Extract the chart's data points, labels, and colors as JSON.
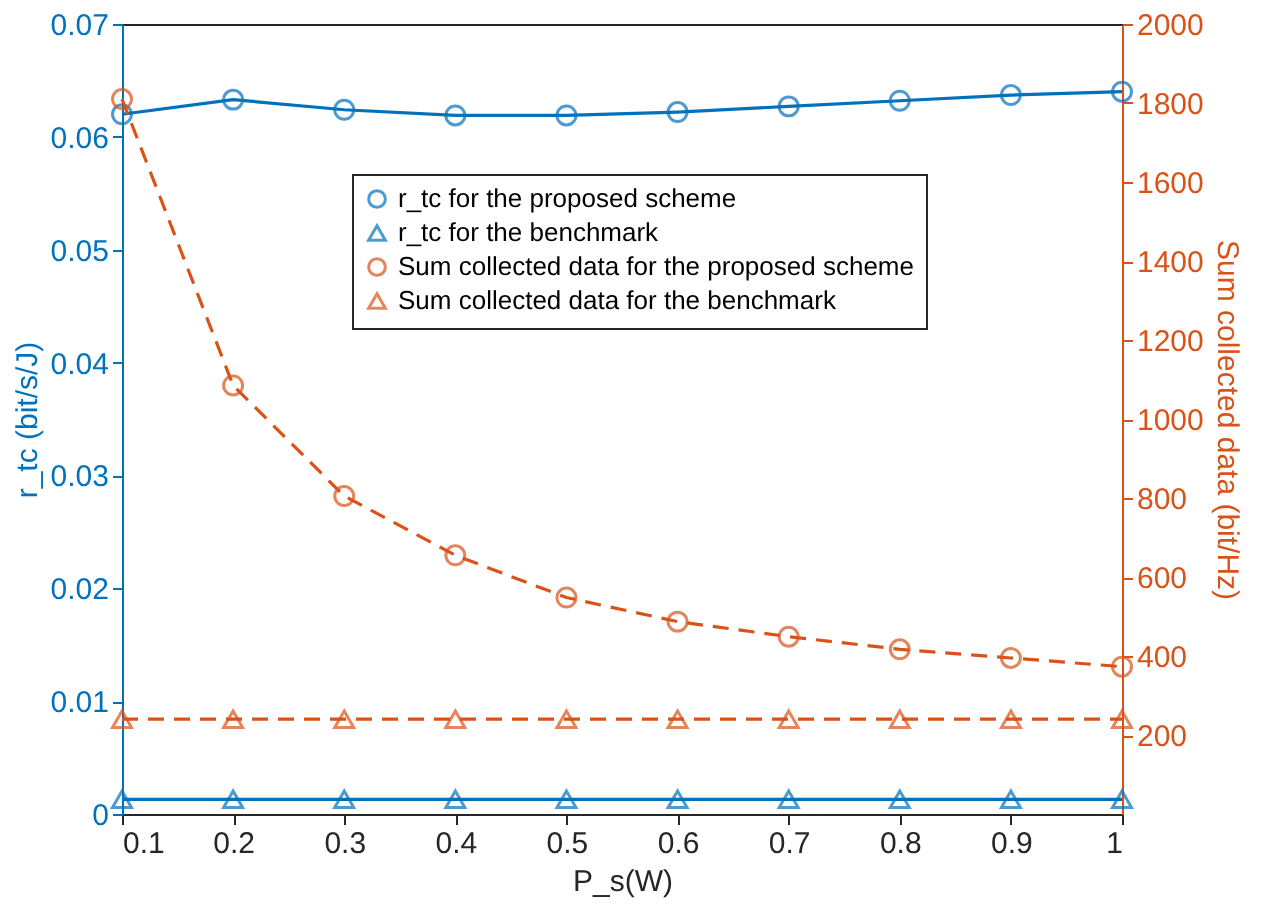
{
  "chart_data": {
    "type": "line",
    "xlabel": "P_s(W)",
    "ylabel": "r_tc (bit/s/J)",
    "y2label": "Sum collected data (bit/Hz)",
    "x": [
      0.1,
      0.2,
      0.3,
      0.4,
      0.5,
      0.6,
      0.7,
      0.8,
      0.9,
      1.0
    ],
    "series": [
      {
        "name": "r_tc  for the proposed scheme",
        "color": "#0072bd",
        "marker": "circle",
        "line_style": "solid",
        "values": [
          0.062,
          0.0633,
          0.0624,
          0.0619,
          0.0619,
          0.0622,
          0.0627,
          0.0632,
          0.0637,
          0.064
        ]
      },
      {
        "name": "r_tc  for the benchmark",
        "color": "#0072bd",
        "marker": "triangle",
        "line_style": "solid",
        "values": [
          0.0013,
          0.0013,
          0.0013,
          0.0013,
          0.0013,
          0.0013,
          0.0013,
          0.0013,
          0.0013,
          0.0013
        ]
      },
      {
        "name": "Sum collected data for the proposed scheme",
        "color": "#d95319",
        "marker": "circle",
        "line_style": "dashed",
        "axis": "y2",
        "values": [
          1810,
          1085,
          805,
          655,
          548,
          487,
          449,
          417,
          395,
          373
        ]
      },
      {
        "name": "Sum collected data for the benchmark",
        "color": "#d95319",
        "marker": "triangle",
        "line_style": "dashed",
        "axis": "y2",
        "values": [
          240,
          240,
          240,
          240,
          240,
          240,
          240,
          240,
          240,
          240
        ]
      }
    ],
    "xlim": [
      0.1,
      1
    ],
    "xticks": [
      0.1,
      0.2,
      0.3,
      0.4,
      0.5,
      0.6,
      0.7,
      0.8,
      0.9,
      1
    ],
    "ylim": [
      0,
      0.07
    ],
    "yticks": [
      0,
      0.01,
      0.02,
      0.03,
      0.04,
      0.05,
      0.06,
      0.07
    ],
    "y2lim": [
      0,
      2000
    ],
    "y2ticks": [
      200,
      400,
      600,
      800,
      1000,
      1200,
      1400,
      1600,
      1800,
      2000
    ],
    "grid": false,
    "legend": "top"
  }
}
